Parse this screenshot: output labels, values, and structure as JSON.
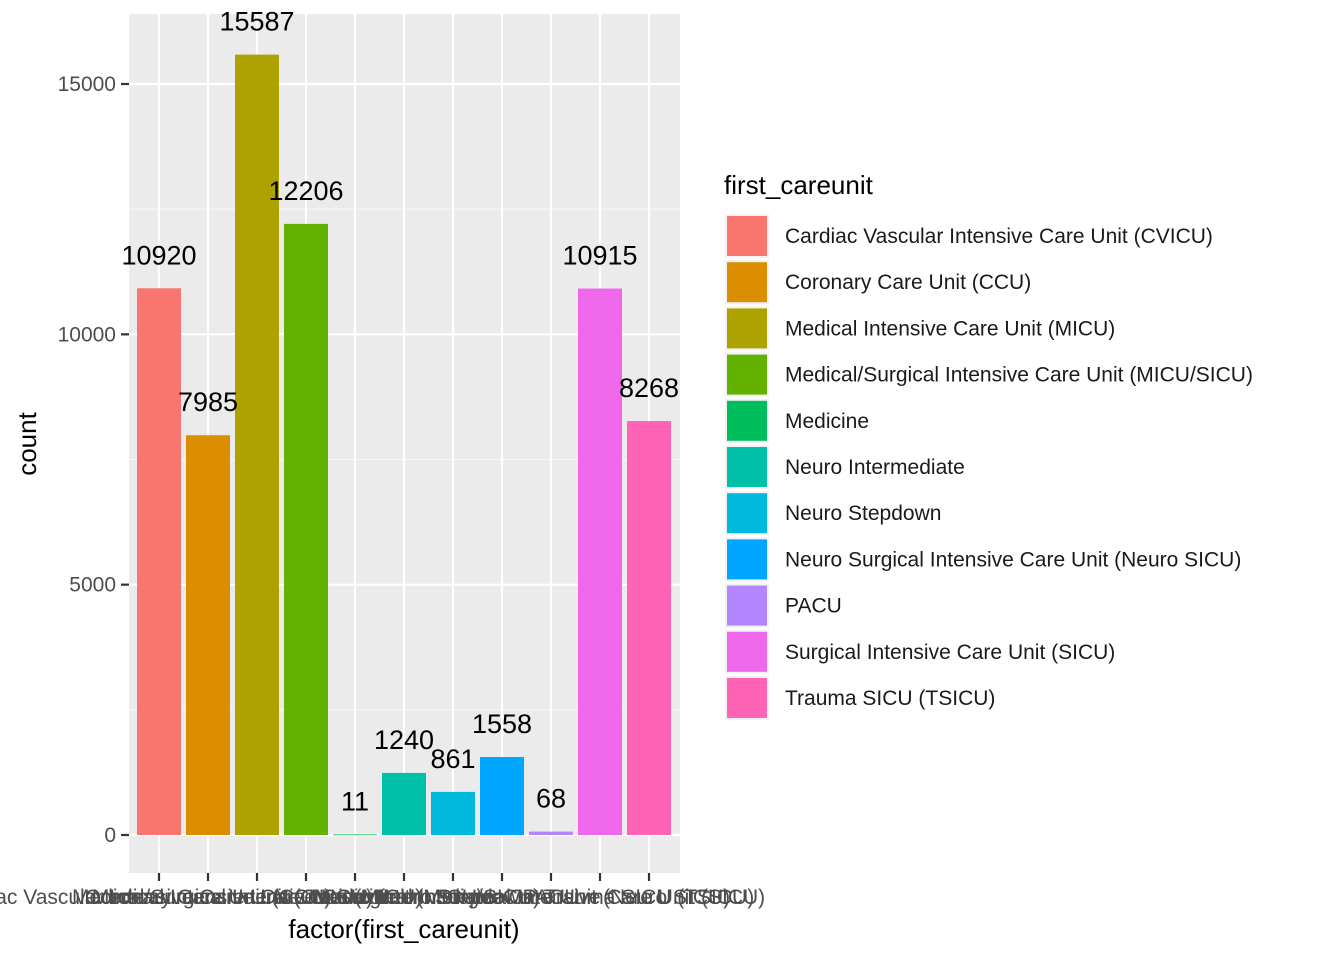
{
  "chart_data": {
    "type": "bar",
    "xlabel": "factor(first_careunit)",
    "ylabel": "count",
    "ylim": [
      0,
      16200
    ],
    "y_ticks": [
      0,
      5000,
      10000,
      15000
    ],
    "y_tick_labels": [
      "0",
      "5000",
      "10000",
      "15000"
    ],
    "grid": true,
    "legend_title": "first_careunit",
    "legend_position": "right",
    "categories": [
      "Cardiac Vascular Intensive Care Unit (CVICU)",
      "Coronary Care Unit (CCU)",
      "Medical Intensive Care Unit (MICU)",
      "Medical/Surgical Intensive Care Unit (MICU/SICU)",
      "Medicine",
      "Neuro Intermediate",
      "Neuro Stepdown",
      "Neuro Surgical Intensive Care Unit (Neuro SICU)",
      "PACU",
      "Surgical Intensive Care Unit (SICU)",
      "Trauma SICU (TSICU)"
    ],
    "values": [
      10920,
      7985,
      15587,
      12206,
      11,
      1240,
      861,
      1558,
      68,
      10915,
      8268
    ],
    "data_labels": [
      "10920",
      "7985",
      "15587",
      "12206",
      "11",
      "1240",
      "861",
      "1558",
      "68",
      "10915",
      "8268"
    ],
    "colors": [
      "#F8766D",
      "#DB8E00",
      "#AEA200",
      "#64B200",
      "#00BD5C",
      "#00C1A7",
      "#00BADE",
      "#00A6FF",
      "#B385FF",
      "#EF67EB",
      "#FF63B6"
    ]
  }
}
